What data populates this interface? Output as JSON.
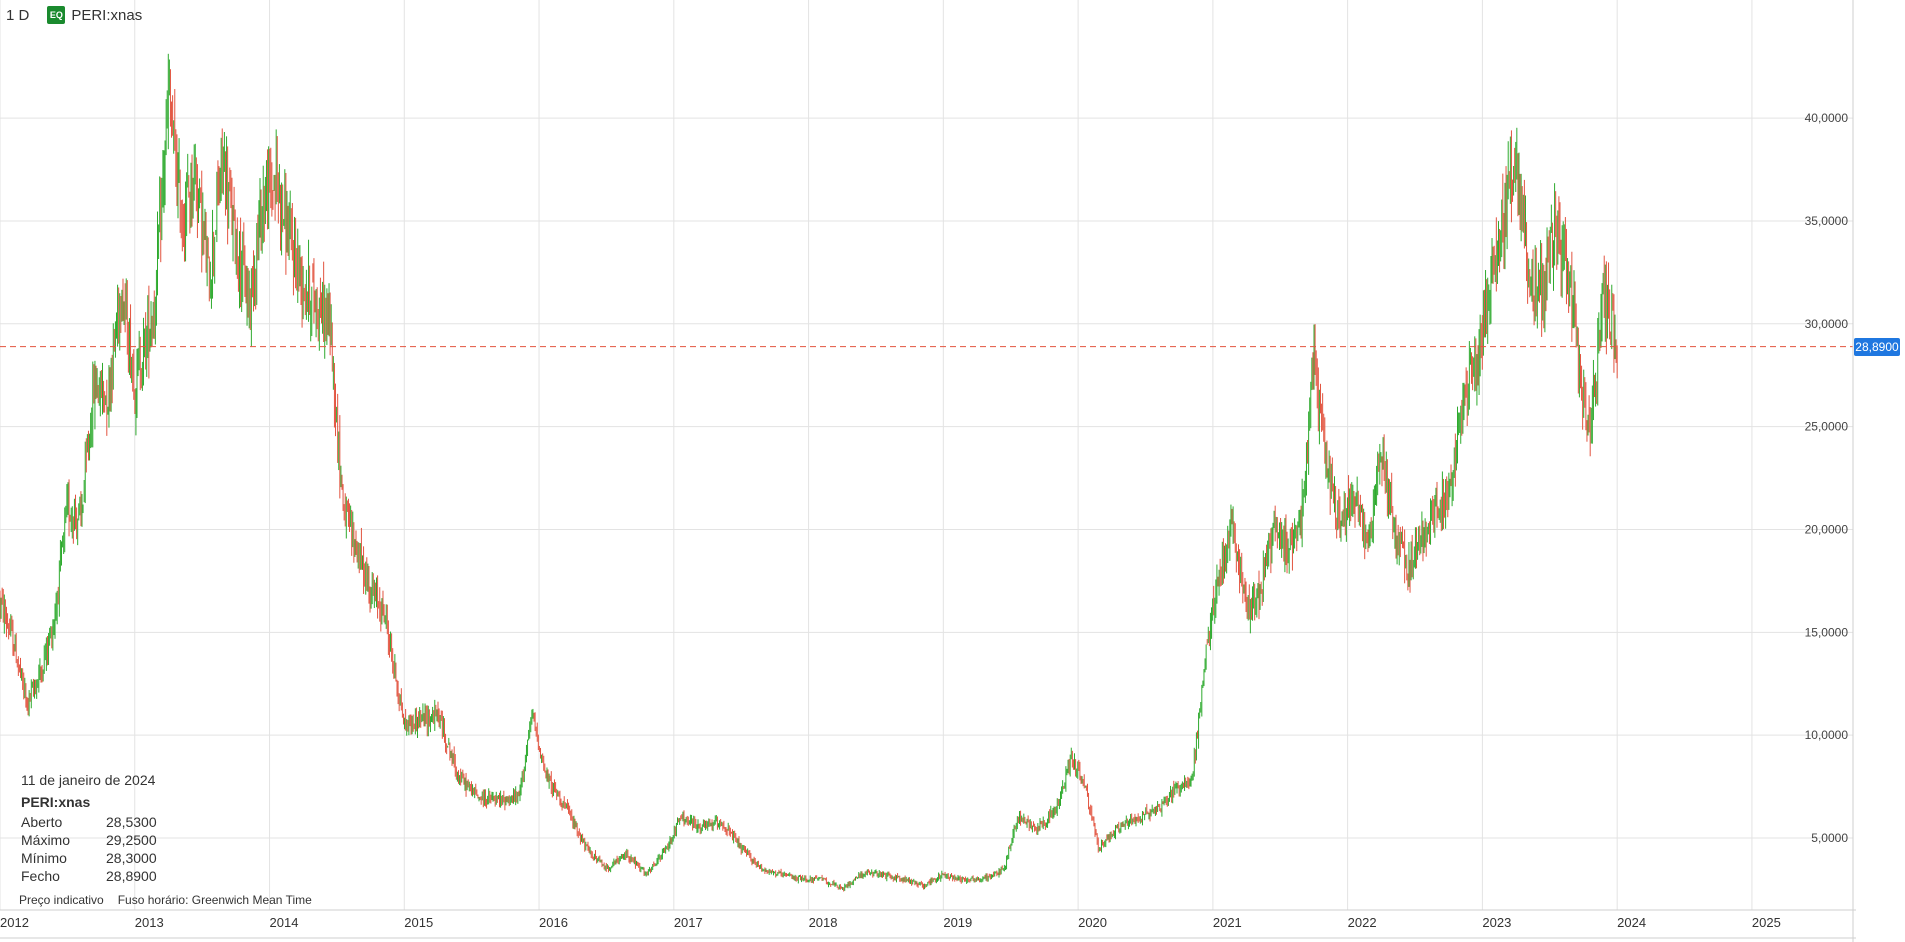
{
  "header": {
    "interval": "1 D",
    "badge": "EQ",
    "symbol": "PERI:xnas"
  },
  "tooltip": {
    "date": "11 de janeiro de 2024",
    "symbol": "PERI:xnas",
    "rows": [
      {
        "label": "Aberto",
        "value": "28,5300"
      },
      {
        "label": "Máximo",
        "value": "29,2500"
      },
      {
        "label": "Mínimo",
        "value": "28,3000"
      },
      {
        "label": "Fecho",
        "value": "28,8900"
      }
    ]
  },
  "footer": {
    "indicative": "Preço indicativo",
    "timezone": "Fuso horário: Greenwich Mean Time"
  },
  "current_price": {
    "label": "28,8900",
    "value": 28.89
  },
  "colors": {
    "up": "#2eaa2e",
    "down": "#e2533f",
    "grid": "#e3e3e3",
    "price_line": "#e2533f",
    "badge": "#1f77e0"
  },
  "chart_data": {
    "type": "candlestick",
    "x_range": [
      2012.0,
      2025.75
    ],
    "ylim": [
      1.5,
      45.5
    ],
    "y_ticks": [
      5,
      10,
      15,
      20,
      25,
      30,
      35,
      40
    ],
    "y_tick_labels": [
      "5,0000",
      "10,0000",
      "15,0000",
      "20,0000",
      "25,0000",
      "30,0000",
      "35,0000",
      "40,0000"
    ],
    "x_ticks": [
      2012,
      2013,
      2014,
      2015,
      2016,
      2017,
      2018,
      2019,
      2020,
      2021,
      2022,
      2023,
      2024,
      2025
    ],
    "x_tick_labels": [
      "2012",
      "2013",
      "2014",
      "2015",
      "2016",
      "2017",
      "2018",
      "2019",
      "2020",
      "2021",
      "2022",
      "2023",
      "2024",
      "2025"
    ],
    "grid": true,
    "price_line": 28.89,
    "close_series": [
      [
        2012.0,
        16.5
      ],
      [
        2012.1,
        14.5
      ],
      [
        2012.2,
        11.5
      ],
      [
        2012.3,
        13.0
      ],
      [
        2012.4,
        15.5
      ],
      [
        2012.5,
        21.0
      ],
      [
        2012.6,
        20.5
      ],
      [
        2012.7,
        27.0
      ],
      [
        2012.8,
        26.5
      ],
      [
        2012.9,
        32.0
      ],
      [
        2013.0,
        27.0
      ],
      [
        2013.15,
        31.0
      ],
      [
        2013.25,
        41.0
      ],
      [
        2013.35,
        35.0
      ],
      [
        2013.45,
        37.5
      ],
      [
        2013.55,
        32.0
      ],
      [
        2013.65,
        38.0
      ],
      [
        2013.75,
        34.0
      ],
      [
        2013.85,
        31.0
      ],
      [
        2013.95,
        36.0
      ],
      [
        2014.05,
        37.0
      ],
      [
        2014.15,
        34.0
      ],
      [
        2014.25,
        32.0
      ],
      [
        2014.35,
        31.0
      ],
      [
        2014.45,
        30.0
      ],
      [
        2014.5,
        25.0
      ],
      [
        2014.55,
        21.0
      ],
      [
        2014.65,
        19.0
      ],
      [
        2014.75,
        17.0
      ],
      [
        2014.85,
        16.0
      ],
      [
        2015.0,
        10.5
      ],
      [
        2015.15,
        10.8
      ],
      [
        2015.25,
        11.0
      ],
      [
        2015.4,
        8.0
      ],
      [
        2015.55,
        7.0
      ],
      [
        2015.7,
        6.8
      ],
      [
        2015.85,
        7.0
      ],
      [
        2015.95,
        11.0
      ],
      [
        2016.05,
        8.0
      ],
      [
        2016.2,
        6.5
      ],
      [
        2016.35,
        4.5
      ],
      [
        2016.5,
        3.5
      ],
      [
        2016.65,
        4.2
      ],
      [
        2016.8,
        3.2
      ],
      [
        2016.95,
        4.5
      ],
      [
        2017.05,
        6.0
      ],
      [
        2017.2,
        5.5
      ],
      [
        2017.35,
        5.8
      ],
      [
        2017.5,
        4.5
      ],
      [
        2017.65,
        3.5
      ],
      [
        2017.8,
        3.2
      ],
      [
        2017.95,
        3.0
      ],
      [
        2018.1,
        3.0
      ],
      [
        2018.25,
        2.5
      ],
      [
        2018.4,
        3.3
      ],
      [
        2018.55,
        3.2
      ],
      [
        2018.7,
        3.0
      ],
      [
        2018.85,
        2.7
      ],
      [
        2019.0,
        3.2
      ],
      [
        2019.15,
        3.0
      ],
      [
        2019.3,
        3.0
      ],
      [
        2019.45,
        3.5
      ],
      [
        2019.55,
        6.0
      ],
      [
        2019.7,
        5.5
      ],
      [
        2019.85,
        6.5
      ],
      [
        2019.95,
        9.0
      ],
      [
        2020.05,
        7.5
      ],
      [
        2020.15,
        4.5
      ],
      [
        2020.3,
        5.5
      ],
      [
        2020.45,
        6.0
      ],
      [
        2020.6,
        6.5
      ],
      [
        2020.75,
        7.5
      ],
      [
        2020.85,
        8.0
      ],
      [
        2020.95,
        14.0
      ],
      [
        2021.05,
        18.0
      ],
      [
        2021.15,
        20.0
      ],
      [
        2021.25,
        16.0
      ],
      [
        2021.35,
        17.0
      ],
      [
        2021.45,
        20.0
      ],
      [
        2021.55,
        19.0
      ],
      [
        2021.65,
        20.5
      ],
      [
        2021.75,
        28.0
      ],
      [
        2021.85,
        23.0
      ],
      [
        2021.95,
        20.0
      ],
      [
        2022.05,
        22.0
      ],
      [
        2022.15,
        19.0
      ],
      [
        2022.25,
        24.0
      ],
      [
        2022.35,
        20.0
      ],
      [
        2022.45,
        18.0
      ],
      [
        2022.55,
        19.5
      ],
      [
        2022.65,
        21.0
      ],
      [
        2022.75,
        21.5
      ],
      [
        2022.85,
        26.0
      ],
      [
        2022.95,
        28.0
      ],
      [
        2023.05,
        32.0
      ],
      [
        2023.15,
        35.0
      ],
      [
        2023.25,
        38.0
      ],
      [
        2023.35,
        32.0
      ],
      [
        2023.45,
        31.5
      ],
      [
        2023.55,
        35.0
      ],
      [
        2023.65,
        32.0
      ],
      [
        2023.75,
        26.0
      ],
      [
        2023.8,
        25.0
      ],
      [
        2023.85,
        28.0
      ],
      [
        2023.9,
        31.5
      ],
      [
        2024.0,
        28.9
      ]
    ]
  }
}
